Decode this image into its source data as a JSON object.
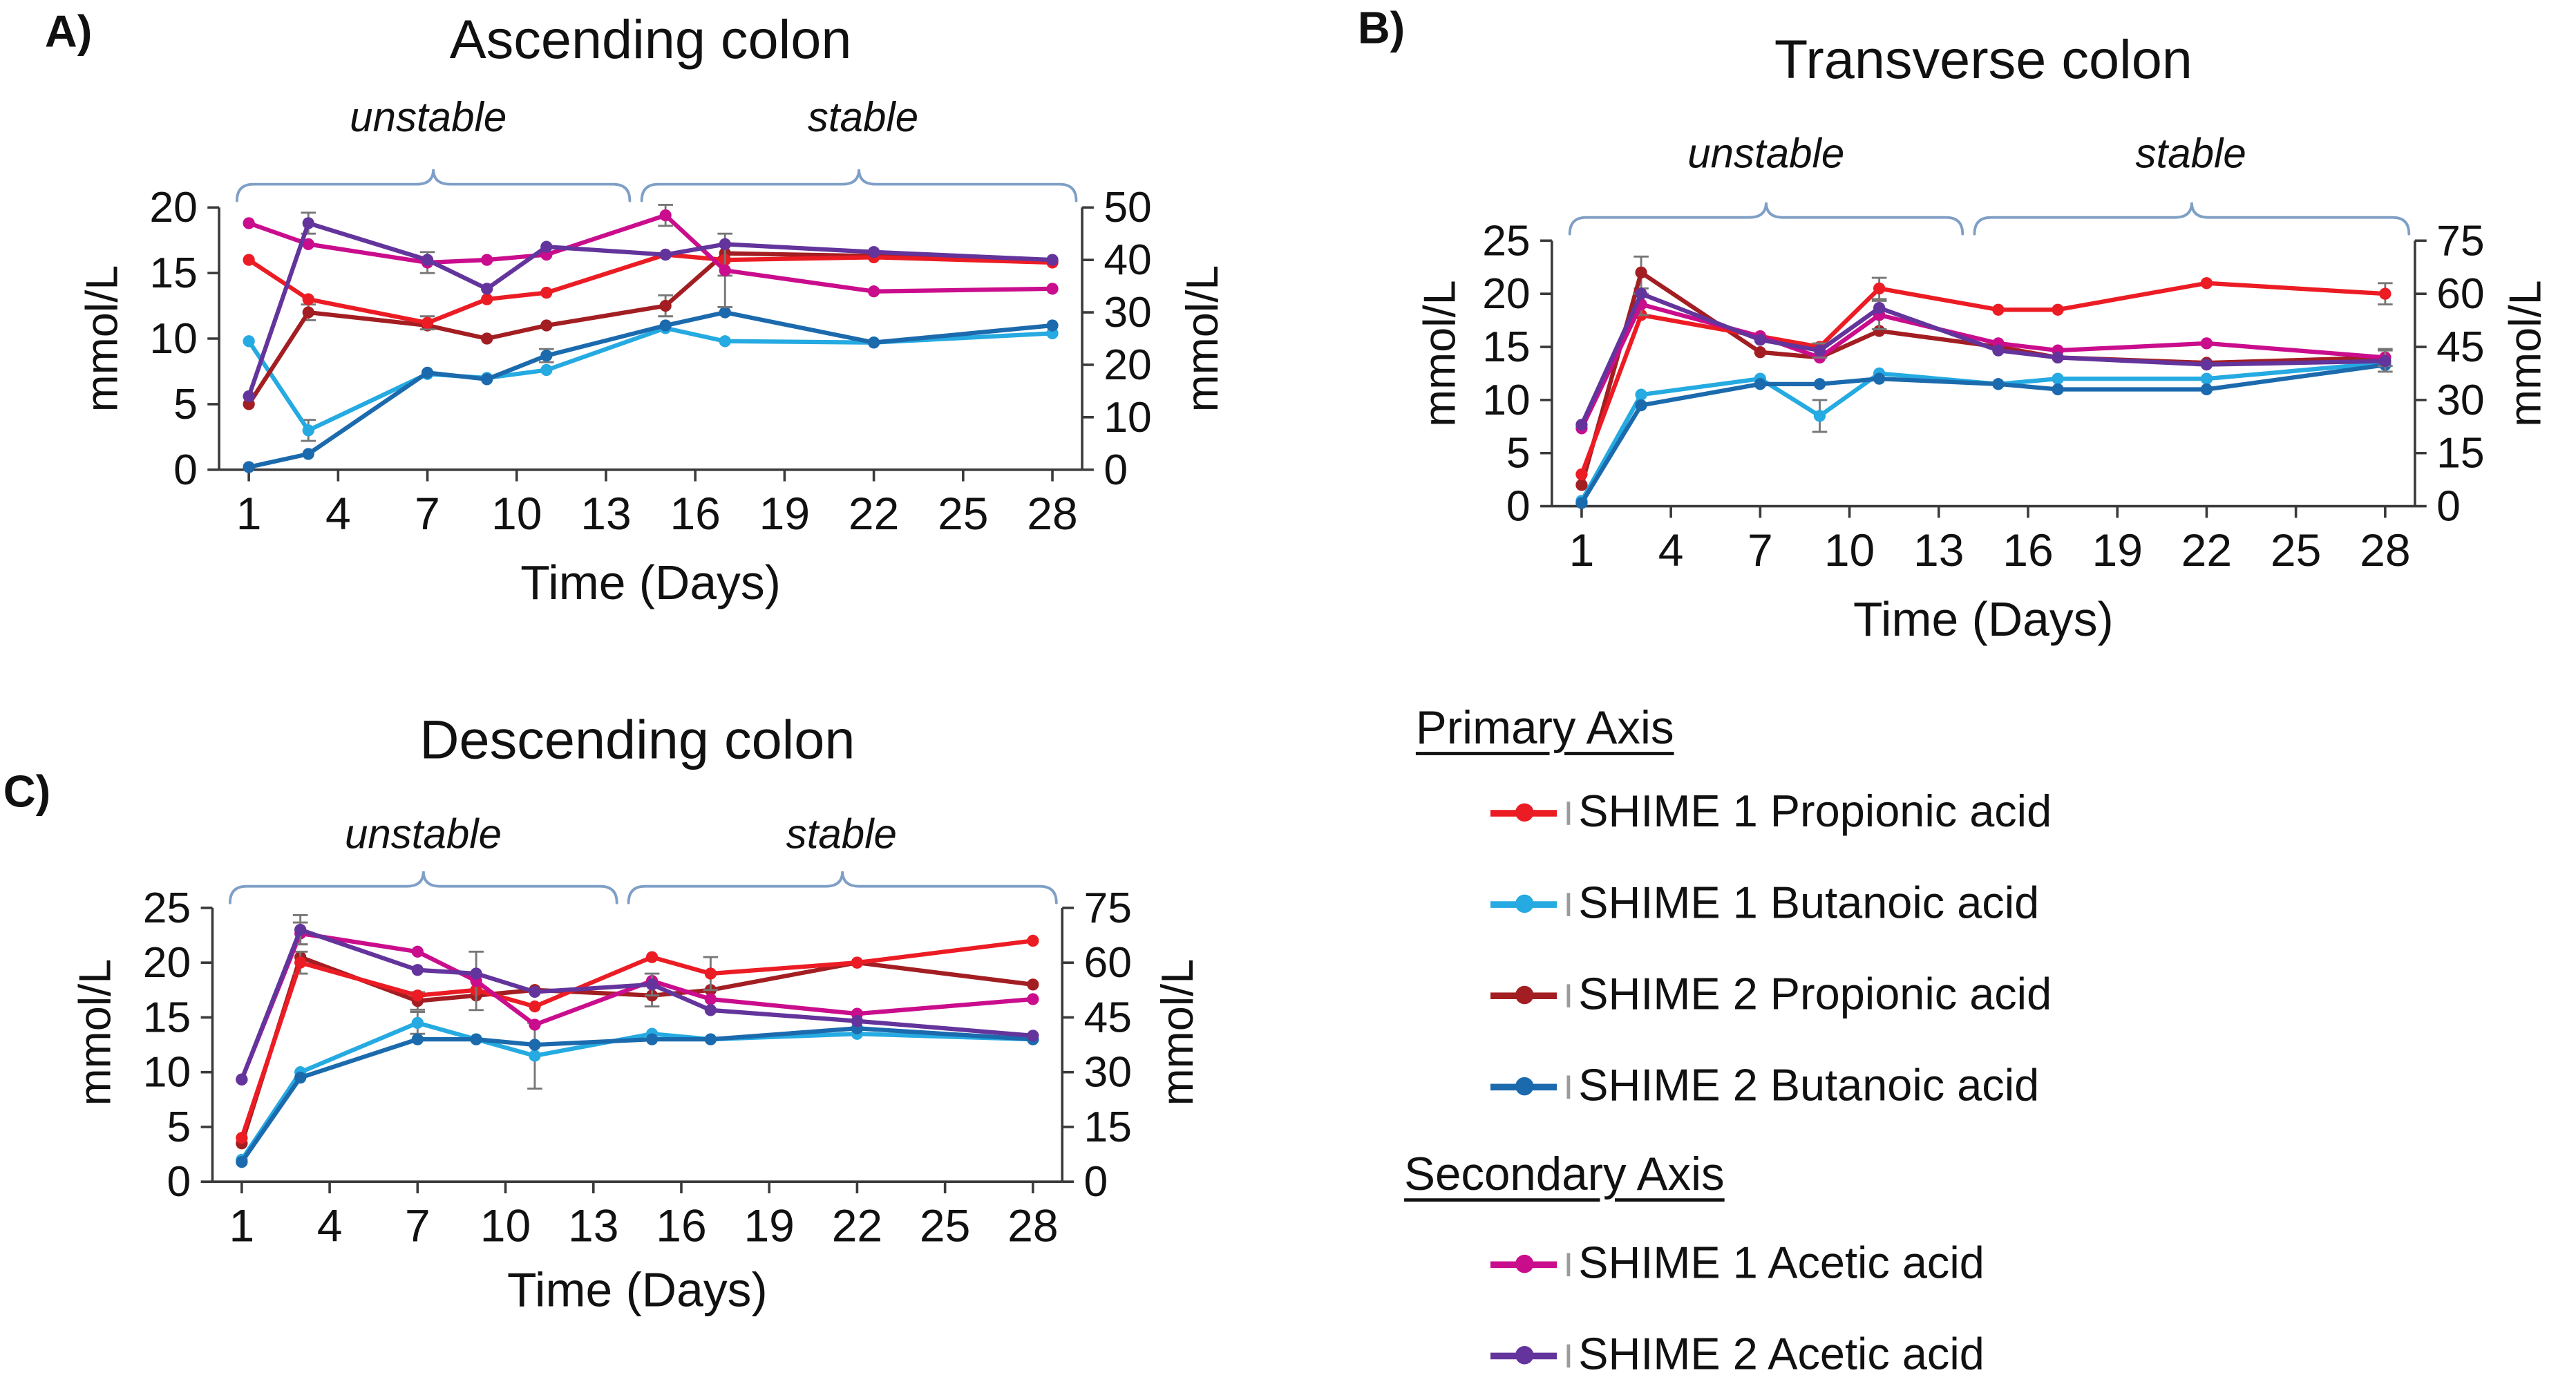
{
  "page": {
    "background": "#ffffff"
  },
  "colors": {
    "s1_propionic": "#ec1c24",
    "s1_butanoic": "#25aae1",
    "s2_propionic": "#a31e22",
    "s2_butanoic": "#1b6aad",
    "s1_acetic": "#ca0d8c",
    "s2_acetic": "#63349c",
    "bracket": "#7f9fc6",
    "error_bar": "#777777",
    "axis": "#3a3a3a",
    "text": "#111111"
  },
  "legend": {
    "primary_title": "Primary Axis",
    "secondary_title": "Secondary Axis",
    "primary_items": [
      {
        "label": "SHIME 1 Propionic acid",
        "series": "s1_propionic"
      },
      {
        "label": "SHIME 1 Butanoic acid",
        "series": "s1_butanoic"
      },
      {
        "label": "SHIME 2 Propionic acid",
        "series": "s2_propionic"
      },
      {
        "label": "SHIME 2 Butanoic acid",
        "series": "s2_butanoic"
      }
    ],
    "secondary_items": [
      {
        "label": "SHIME 1 Acetic acid",
        "series": "s1_acetic"
      },
      {
        "label": "SHIME 2 Acetic acid",
        "series": "s2_acetic"
      }
    ]
  },
  "chart_data": [
    {
      "id": "A",
      "panel_label": "A)",
      "type": "line",
      "title": "Ascending colon",
      "xlabel": "Time (Days)",
      "ylabel_left": "mmol/L",
      "ylabel_right": "mmol/L",
      "annotations": [
        "unstable",
        "stable"
      ],
      "phase_split_day": 14,
      "x_days": [
        1,
        3,
        7,
        9,
        11,
        15,
        17,
        22,
        28
      ],
      "x_ticks": [
        1,
        4,
        7,
        10,
        13,
        16,
        19,
        22,
        25,
        28
      ],
      "y_left": {
        "min": 0,
        "max": 20,
        "ticks": [
          0,
          5,
          10,
          15,
          20
        ]
      },
      "y_right": {
        "min": 0,
        "max": 50,
        "ticks": [
          0,
          10,
          20,
          30,
          40,
          50
        ]
      },
      "series": [
        {
          "name": "SHIME 1 Butanoic acid",
          "key": "s1_butanoic",
          "axis": "left",
          "values": [
            9.8,
            3,
            7.3,
            7,
            7.6,
            10.8,
            9.8,
            9.7,
            10.4
          ],
          "err": [
            0,
            0.8,
            0,
            0,
            0,
            0,
            0,
            0,
            0
          ]
        },
        {
          "name": "SHIME 2 Butanoic acid",
          "key": "s2_butanoic",
          "axis": "left",
          "values": [
            0.2,
            1.2,
            7.4,
            6.9,
            8.7,
            11,
            12,
            9.7,
            11
          ],
          "err": [
            0,
            0,
            0,
            0,
            0.5,
            0,
            0,
            0,
            0
          ]
        },
        {
          "name": "SHIME 2 Propionic acid",
          "key": "s2_propionic",
          "axis": "left",
          "values": [
            5,
            12,
            11,
            10,
            11,
            12.5,
            16.5,
            16.3,
            15.9
          ],
          "err": [
            0,
            0.6,
            0,
            0,
            0,
            0.8,
            0,
            0,
            0
          ]
        },
        {
          "name": "SHIME 1 Propionic acid",
          "key": "s1_propionic",
          "axis": "left",
          "values": [
            16,
            13,
            11.2,
            13,
            13.5,
            16.4,
            16,
            16.2,
            15.8
          ],
          "err": [
            0,
            0,
            0.5,
            0,
            0,
            0,
            1.2,
            0,
            0
          ]
        },
        {
          "name": "SHIME 1 Acetic acid",
          "key": "s1_acetic",
          "axis": "right",
          "values": [
            47,
            43,
            39.5,
            40,
            41,
            48.5,
            38,
            34,
            34.5
          ],
          "err": [
            0,
            0,
            2,
            0,
            0,
            2,
            7,
            0,
            0
          ]
        },
        {
          "name": "SHIME 2 Acetic acid",
          "key": "s2_acetic",
          "axis": "right",
          "values": [
            14,
            47,
            40,
            34.5,
            42.5,
            41,
            43,
            41.5,
            40
          ],
          "err": [
            0,
            2,
            0,
            0,
            0,
            0,
            0,
            0,
            0
          ]
        }
      ]
    },
    {
      "id": "B",
      "panel_label": "B)",
      "type": "line",
      "title": "Transverse colon",
      "xlabel": "Time (Days)",
      "ylabel_left": "mmol/L",
      "ylabel_right": "mmol/L",
      "annotations": [
        "unstable",
        "stable"
      ],
      "phase_split_day": 14,
      "x_days": [
        1,
        3,
        7,
        9,
        11,
        15,
        17,
        22,
        28
      ],
      "x_ticks": [
        1,
        4,
        7,
        10,
        13,
        16,
        19,
        22,
        25,
        28
      ],
      "y_left": {
        "min": 0,
        "max": 25,
        "ticks": [
          0,
          5,
          10,
          15,
          20,
          25
        ]
      },
      "y_right": {
        "min": 0,
        "max": 75,
        "ticks": [
          0,
          15,
          30,
          45,
          60,
          75
        ]
      },
      "series": [
        {
          "name": "SHIME 1 Butanoic acid",
          "key": "s1_butanoic",
          "axis": "left",
          "values": [
            0.5,
            10.5,
            12,
            8.5,
            12.5,
            11.5,
            12,
            12,
            13.5
          ],
          "err": [
            0,
            0,
            0,
            1.5,
            0,
            0,
            0,
            0,
            0
          ]
        },
        {
          "name": "SHIME 2 Butanoic acid",
          "key": "s2_butanoic",
          "axis": "left",
          "values": [
            0.3,
            9.5,
            11.5,
            11.5,
            12,
            11.5,
            11,
            11,
            13.3
          ],
          "err": [
            0,
            0,
            0,
            0,
            0,
            0,
            0,
            0,
            0
          ]
        },
        {
          "name": "SHIME 2 Propionic acid",
          "key": "s2_propionic",
          "axis": "left",
          "values": [
            2,
            22,
            14.5,
            14,
            16.5,
            15,
            14,
            13.5,
            14
          ],
          "err": [
            0,
            1.5,
            0,
            0,
            0,
            0,
            0,
            0,
            0.8
          ]
        },
        {
          "name": "SHIME 1 Propionic acid",
          "key": "s1_propionic",
          "axis": "left",
          "values": [
            3,
            18,
            16,
            15,
            20.5,
            18.5,
            18.5,
            21,
            20
          ],
          "err": [
            0,
            0,
            0,
            0,
            1,
            0,
            0,
            0,
            1
          ]
        },
        {
          "name": "SHIME 1 Acetic acid",
          "key": "s1_acetic",
          "axis": "right",
          "values": [
            22,
            57,
            48,
            42,
            54,
            46,
            44,
            46,
            42
          ],
          "err": [
            0,
            3,
            0,
            0,
            4,
            0,
            0,
            0,
            0
          ]
        },
        {
          "name": "SHIME 2 Acetic acid",
          "key": "s2_acetic",
          "axis": "right",
          "values": [
            23,
            60,
            47,
            44,
            56,
            44,
            42,
            40,
            41
          ],
          "err": [
            0,
            0,
            0,
            2,
            0,
            0,
            0,
            0,
            3
          ]
        }
      ]
    },
    {
      "id": "C",
      "panel_label": "C)",
      "type": "line",
      "title": "Descending colon",
      "xlabel": "Time (Days)",
      "ylabel_left": "mmol/L",
      "ylabel_right": "mmol/L",
      "annotations": [
        "unstable",
        "stable"
      ],
      "phase_split_day": 14,
      "x_days": [
        1,
        3,
        7,
        9,
        11,
        15,
        17,
        22,
        28
      ],
      "x_ticks": [
        1,
        4,
        7,
        10,
        13,
        16,
        19,
        22,
        25,
        28
      ],
      "y_left": {
        "min": 0,
        "max": 25,
        "ticks": [
          0,
          5,
          10,
          15,
          20,
          25
        ]
      },
      "y_right": {
        "min": 0,
        "max": 75,
        "ticks": [
          0,
          15,
          30,
          45,
          60,
          75
        ]
      },
      "series": [
        {
          "name": "SHIME 1 Butanoic acid",
          "key": "s1_butanoic",
          "axis": "left",
          "values": [
            2,
            10,
            14.5,
            13,
            11.5,
            13.5,
            13,
            13.5,
            13
          ],
          "err": [
            0,
            0,
            1,
            0,
            3,
            0,
            0,
            0,
            0
          ]
        },
        {
          "name": "SHIME 2 Butanoic acid",
          "key": "s2_butanoic",
          "axis": "left",
          "values": [
            1.8,
            9.5,
            13,
            13,
            12.5,
            13,
            13,
            14,
            13
          ],
          "err": [
            0,
            0,
            0,
            0,
            0,
            0,
            0,
            0,
            0
          ]
        },
        {
          "name": "SHIME 2 Propionic acid",
          "key": "s2_propionic",
          "axis": "left",
          "values": [
            3.5,
            20.5,
            16.5,
            17,
            17.5,
            17,
            17.5,
            20,
            18
          ],
          "err": [
            0,
            0,
            0.8,
            0,
            0,
            1,
            0,
            0,
            0
          ]
        },
        {
          "name": "SHIME 1 Propionic acid",
          "key": "s1_propionic",
          "axis": "left",
          "values": [
            4,
            20,
            17,
            17.5,
            16,
            20.5,
            19,
            20,
            22
          ],
          "err": [
            0,
            1,
            0,
            0,
            0,
            0,
            1.5,
            0,
            0
          ]
        },
        {
          "name": "SHIME 1 Acetic acid",
          "key": "s1_acetic",
          "axis": "right",
          "values": [
            28,
            68,
            63,
            55,
            43,
            55,
            50,
            46,
            50
          ],
          "err": [
            0,
            3,
            0,
            8,
            0,
            0,
            0,
            0,
            0
          ]
        },
        {
          "name": "SHIME 2 Acetic acid",
          "key": "s2_acetic",
          "axis": "right",
          "values": [
            28,
            69,
            58,
            57,
            52,
            54,
            47,
            44,
            40
          ],
          "err": [
            0,
            4,
            0,
            0,
            0,
            3,
            0,
            0,
            0
          ]
        }
      ]
    }
  ]
}
